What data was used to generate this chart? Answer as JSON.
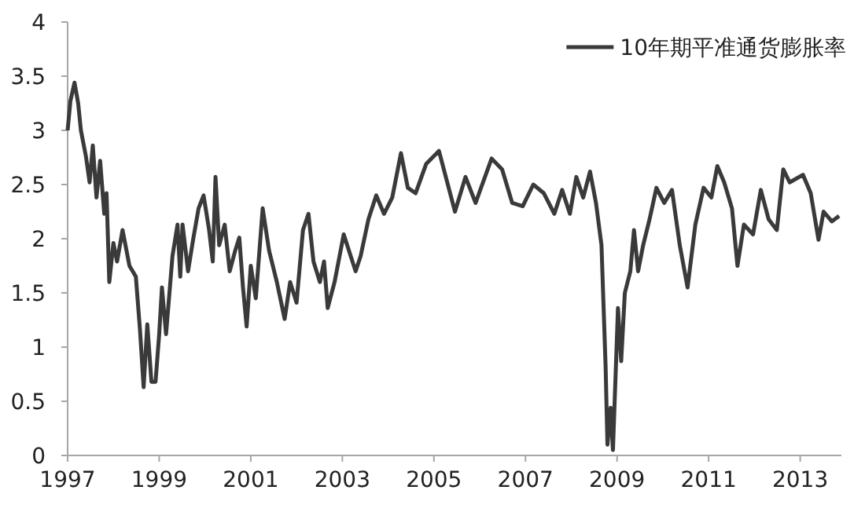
{
  "chart_data": {
    "type": "line",
    "legend": "top right",
    "xlim": [
      1997,
      2013.9
    ],
    "ylim": [
      0,
      4
    ],
    "xticks": [
      1997,
      1999,
      2001,
      2003,
      2005,
      2007,
      2009,
      2011,
      2013
    ],
    "yticks": [
      0,
      0.5,
      1,
      1.5,
      2,
      2.5,
      3,
      3.5,
      4
    ],
    "x": [
      1997.0,
      1997.06,
      1997.15,
      1997.23,
      1997.29,
      1997.4,
      1997.48,
      1997.55,
      1997.63,
      1997.71,
      1997.8,
      1997.85,
      1997.91,
      1998.0,
      1998.08,
      1998.2,
      1998.35,
      1998.49,
      1998.58,
      1998.66,
      1998.74,
      1998.83,
      1998.92,
      1999.0,
      1999.06,
      1999.15,
      1999.29,
      1999.4,
      1999.46,
      1999.51,
      1999.63,
      1999.74,
      1999.86,
      1999.97,
      2000.09,
      2000.17,
      2000.23,
      2000.31,
      2000.43,
      2000.54,
      2000.66,
      2000.75,
      2000.83,
      2000.91,
      2001.0,
      2001.11,
      2001.26,
      2001.4,
      2001.57,
      2001.74,
      2001.86,
      2002.0,
      2002.14,
      2002.26,
      2002.37,
      2002.51,
      2002.6,
      2002.68,
      2002.83,
      2003.03,
      2003.29,
      2003.4,
      2003.57,
      2003.74,
      2003.91,
      2004.09,
      2004.28,
      2004.43,
      2004.6,
      2004.83,
      2005.11,
      2005.46,
      2005.69,
      2005.91,
      2006.26,
      2006.49,
      2006.71,
      2006.94,
      2007.17,
      2007.4,
      2007.63,
      2007.8,
      2007.97,
      2008.11,
      2008.26,
      2008.41,
      2008.54,
      2008.66,
      2008.75,
      2008.79,
      2008.86,
      2008.91,
      2009.02,
      2009.09,
      2009.17,
      2009.29,
      2009.37,
      2009.46,
      2009.57,
      2009.71,
      2009.86,
      2010.03,
      2010.2,
      2010.37,
      2010.54,
      2010.71,
      2010.89,
      2011.06,
      2011.19,
      2011.34,
      2011.51,
      2011.63,
      2011.77,
      2011.97,
      2012.14,
      2012.31,
      2012.49,
      2012.63,
      2012.77,
      2013.06,
      2013.23,
      2013.4,
      2013.51,
      2013.69,
      2013.85
    ],
    "series": [
      {
        "name": "10年期平准通货膨胀率",
        "color": "#3a3a3a",
        "values": [
          3.0,
          3.27,
          3.44,
          3.25,
          3.0,
          2.76,
          2.52,
          2.86,
          2.38,
          2.72,
          2.23,
          2.42,
          1.6,
          1.96,
          1.79,
          2.08,
          1.75,
          1.65,
          1.16,
          0.63,
          1.21,
          0.68,
          0.68,
          1.12,
          1.55,
          1.12,
          1.84,
          2.13,
          1.65,
          2.13,
          1.7,
          1.99,
          2.28,
          2.4,
          2.08,
          1.79,
          2.57,
          1.94,
          2.13,
          1.7,
          1.89,
          2.01,
          1.55,
          1.19,
          1.75,
          1.45,
          2.28,
          1.89,
          1.6,
          1.26,
          1.6,
          1.41,
          2.08,
          2.23,
          1.79,
          1.6,
          1.79,
          1.36,
          1.6,
          2.04,
          1.7,
          1.84,
          2.18,
          2.4,
          2.23,
          2.38,
          2.79,
          2.47,
          2.42,
          2.69,
          2.81,
          2.25,
          2.57,
          2.33,
          2.74,
          2.64,
          2.33,
          2.3,
          2.5,
          2.42,
          2.23,
          2.45,
          2.23,
          2.57,
          2.38,
          2.62,
          2.33,
          1.94,
          0.82,
          0.1,
          0.44,
          0.05,
          1.36,
          0.87,
          1.5,
          1.7,
          2.08,
          1.7,
          1.94,
          2.18,
          2.47,
          2.33,
          2.45,
          1.94,
          1.55,
          2.13,
          2.47,
          2.38,
          2.67,
          2.52,
          2.28,
          1.75,
          2.13,
          2.04,
          2.45,
          2.18,
          2.08,
          2.64,
          2.52,
          2.59,
          2.42,
          1.99,
          2.25,
          2.16,
          2.21
        ]
      }
    ]
  }
}
